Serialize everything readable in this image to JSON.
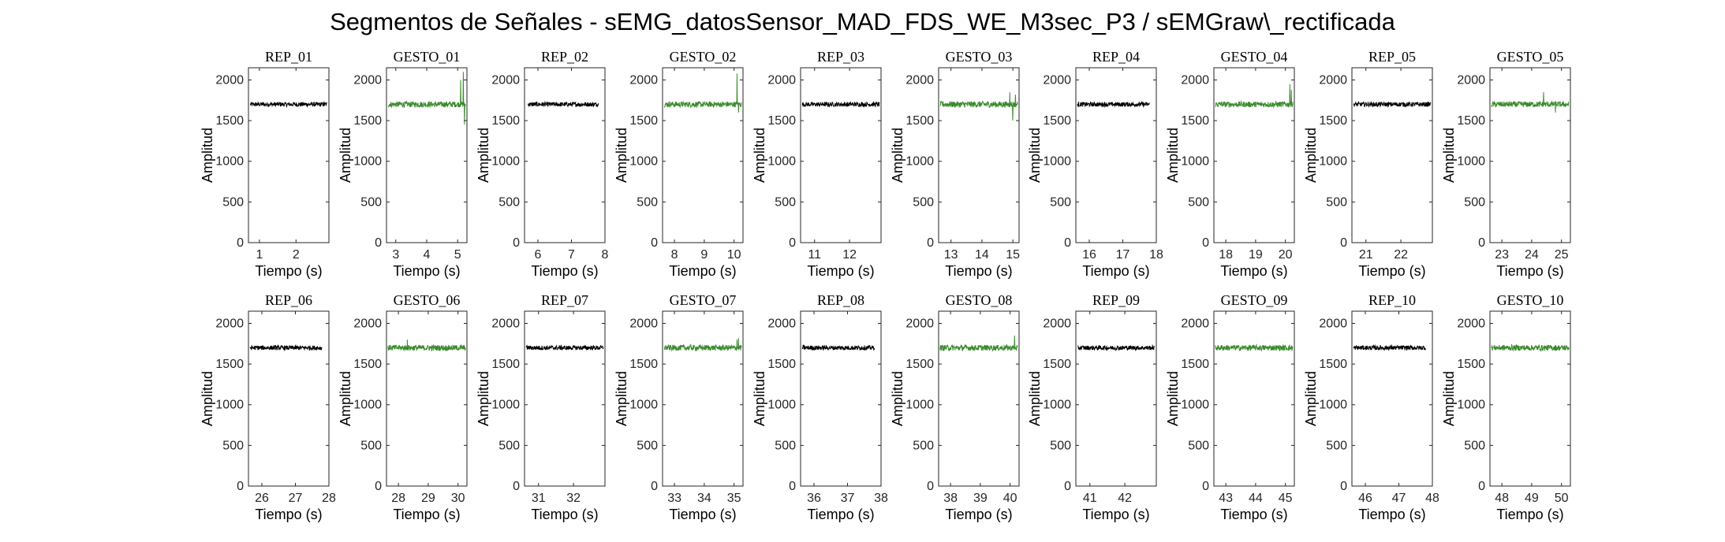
{
  "figure": {
    "title": "Segmentos de Señales - sEMG_datosSensor_MAD_FDS_WE_M3sec_P3 / sEMGraw\\_rectificada"
  },
  "colors": {
    "rep": "#000000",
    "gesto": "#3a8a2c",
    "axis": "#262626"
  },
  "chart_data": [
    {
      "type": "line",
      "title": "REP_01",
      "xlabel": "Tiempo (s)",
      "ylabel": "Amplitud",
      "xlim": [
        0.7,
        2.9
      ],
      "ylim": [
        0,
        2150
      ],
      "xticks": [
        1,
        2
      ],
      "yticks": [
        0,
        500,
        1000,
        1500,
        2000
      ],
      "series": [
        {
          "color": "#000000",
          "x_start": 0.75,
          "x_end": 2.85,
          "baseline": 1700,
          "noise": 28,
          "spikes": []
        }
      ]
    },
    {
      "type": "line",
      "title": "GESTO_01",
      "xlabel": "Tiempo (s)",
      "ylabel": "Amplitud",
      "xlim": [
        2.7,
        5.3
      ],
      "ylim": [
        0,
        2150
      ],
      "xticks": [
        3,
        4,
        5
      ],
      "yticks": [
        0,
        500,
        1000,
        1500,
        2000
      ],
      "series": [
        {
          "color": "#3a8a2c",
          "x_start": 2.75,
          "x_end": 5.25,
          "baseline": 1700,
          "noise": 35,
          "spikes": [
            [
              5.1,
              2000
            ],
            [
              5.18,
              2100
            ],
            [
              5.22,
              1450
            ]
          ]
        }
      ]
    },
    {
      "type": "line",
      "title": "REP_02",
      "xlabel": "Tiempo (s)",
      "ylabel": "Amplitud",
      "xlim": [
        5.6,
        8.0
      ],
      "ylim": [
        0,
        2150
      ],
      "xticks": [
        6,
        7,
        8
      ],
      "yticks": [
        0,
        500,
        1000,
        1500,
        2000
      ],
      "series": [
        {
          "color": "#000000",
          "x_start": 5.7,
          "x_end": 7.8,
          "baseline": 1700,
          "noise": 28,
          "spikes": []
        }
      ]
    },
    {
      "type": "line",
      "title": "GESTO_02",
      "xlabel": "Tiempo (s)",
      "ylabel": "Amplitud",
      "xlim": [
        7.6,
        10.3
      ],
      "ylim": [
        0,
        2150
      ],
      "xticks": [
        8,
        9,
        10
      ],
      "yticks": [
        0,
        500,
        1000,
        1500,
        2000
      ],
      "series": [
        {
          "color": "#3a8a2c",
          "x_start": 7.65,
          "x_end": 10.25,
          "baseline": 1700,
          "noise": 35,
          "spikes": [
            [
              10.1,
              2080
            ],
            [
              10.15,
              1600
            ]
          ]
        }
      ]
    },
    {
      "type": "line",
      "title": "REP_03",
      "xlabel": "Tiempo (s)",
      "ylabel": "Amplitud",
      "xlim": [
        10.6,
        12.9
      ],
      "ylim": [
        0,
        2150
      ],
      "xticks": [
        11,
        12
      ],
      "yticks": [
        0,
        500,
        1000,
        1500,
        2000
      ],
      "series": [
        {
          "color": "#000000",
          "x_start": 10.65,
          "x_end": 12.85,
          "baseline": 1700,
          "noise": 28,
          "spikes": []
        }
      ]
    },
    {
      "type": "line",
      "title": "GESTO_03",
      "xlabel": "Tiempo (s)",
      "ylabel": "Amplitud",
      "xlim": [
        12.6,
        15.2
      ],
      "ylim": [
        0,
        2150
      ],
      "xticks": [
        13,
        14,
        15
      ],
      "yticks": [
        0,
        500,
        1000,
        1500,
        2000
      ],
      "series": [
        {
          "color": "#3a8a2c",
          "x_start": 12.65,
          "x_end": 15.15,
          "baseline": 1700,
          "noise": 38,
          "spikes": [
            [
              14.9,
              1850
            ],
            [
              15.0,
              1500
            ],
            [
              15.08,
              1820
            ]
          ]
        }
      ]
    },
    {
      "type": "line",
      "title": "REP_04",
      "xlabel": "Tiempo (s)",
      "ylabel": "Amplitud",
      "xlim": [
        15.6,
        18.0
      ],
      "ylim": [
        0,
        2150
      ],
      "xticks": [
        16,
        17,
        18
      ],
      "yticks": [
        0,
        500,
        1000,
        1500,
        2000
      ],
      "series": [
        {
          "color": "#000000",
          "x_start": 15.65,
          "x_end": 17.8,
          "baseline": 1700,
          "noise": 28,
          "spikes": []
        }
      ]
    },
    {
      "type": "line",
      "title": "GESTO_04",
      "xlabel": "Tiempo (s)",
      "ylabel": "Amplitud",
      "xlim": [
        17.6,
        20.3
      ],
      "ylim": [
        0,
        2150
      ],
      "xticks": [
        18,
        19,
        20
      ],
      "yticks": [
        0,
        500,
        1000,
        1500,
        2000
      ],
      "series": [
        {
          "color": "#3a8a2c",
          "x_start": 17.65,
          "x_end": 20.25,
          "baseline": 1700,
          "noise": 35,
          "spikes": [
            [
              20.15,
              1950
            ],
            [
              20.2,
              1880
            ]
          ]
        }
      ]
    },
    {
      "type": "line",
      "title": "REP_05",
      "xlabel": "Tiempo (s)",
      "ylabel": "Amplitud",
      "xlim": [
        20.6,
        22.9
      ],
      "ylim": [
        0,
        2150
      ],
      "xticks": [
        21,
        22
      ],
      "yticks": [
        0,
        500,
        1000,
        1500,
        2000
      ],
      "series": [
        {
          "color": "#000000",
          "x_start": 20.65,
          "x_end": 22.85,
          "baseline": 1700,
          "noise": 28,
          "spikes": []
        }
      ]
    },
    {
      "type": "line",
      "title": "GESTO_05",
      "xlabel": "Tiempo (s)",
      "ylabel": "Amplitud",
      "xlim": [
        22.6,
        25.3
      ],
      "ylim": [
        0,
        2150
      ],
      "xticks": [
        23,
        24,
        25
      ],
      "yticks": [
        0,
        500,
        1000,
        1500,
        2000
      ],
      "series": [
        {
          "color": "#3a8a2c",
          "x_start": 22.65,
          "x_end": 25.25,
          "baseline": 1700,
          "noise": 35,
          "spikes": [
            [
              24.4,
              1850
            ],
            [
              24.8,
              1600
            ]
          ]
        }
      ]
    },
    {
      "type": "line",
      "title": "REP_06",
      "xlabel": "Tiempo (s)",
      "ylabel": "Amplitud",
      "xlim": [
        25.6,
        28.0
      ],
      "ylim": [
        0,
        2150
      ],
      "xticks": [
        26,
        27,
        28
      ],
      "yticks": [
        0,
        500,
        1000,
        1500,
        2000
      ],
      "series": [
        {
          "color": "#000000",
          "x_start": 25.65,
          "x_end": 27.8,
          "baseline": 1700,
          "noise": 28,
          "spikes": []
        }
      ]
    },
    {
      "type": "line",
      "title": "GESTO_06",
      "xlabel": "Tiempo (s)",
      "ylabel": "Amplitud",
      "xlim": [
        27.6,
        30.3
      ],
      "ylim": [
        0,
        2150
      ],
      "xticks": [
        28,
        29,
        30
      ],
      "yticks": [
        0,
        500,
        1000,
        1500,
        2000
      ],
      "series": [
        {
          "color": "#3a8a2c",
          "x_start": 27.65,
          "x_end": 30.25,
          "baseline": 1700,
          "noise": 35,
          "spikes": [
            [
              28.3,
              1800
            ]
          ]
        }
      ]
    },
    {
      "type": "line",
      "title": "REP_07",
      "xlabel": "Tiempo (s)",
      "ylabel": "Amplitud",
      "xlim": [
        30.6,
        32.9
      ],
      "ylim": [
        0,
        2150
      ],
      "xticks": [
        31,
        32
      ],
      "yticks": [
        0,
        500,
        1000,
        1500,
        2000
      ],
      "series": [
        {
          "color": "#000000",
          "x_start": 30.65,
          "x_end": 32.85,
          "baseline": 1700,
          "noise": 28,
          "spikes": []
        }
      ]
    },
    {
      "type": "line",
      "title": "GESTO_07",
      "xlabel": "Tiempo (s)",
      "ylabel": "Amplitud",
      "xlim": [
        32.6,
        35.3
      ],
      "ylim": [
        0,
        2150
      ],
      "xticks": [
        33,
        34,
        35
      ],
      "yticks": [
        0,
        500,
        1000,
        1500,
        2000
      ],
      "series": [
        {
          "color": "#3a8a2c",
          "x_start": 32.65,
          "x_end": 35.25,
          "baseline": 1700,
          "noise": 35,
          "spikes": [
            [
              35.1,
              1800
            ],
            [
              35.15,
              1820
            ]
          ]
        }
      ]
    },
    {
      "type": "line",
      "title": "REP_08",
      "xlabel": "Tiempo (s)",
      "ylabel": "Amplitud",
      "xlim": [
        35.6,
        38.0
      ],
      "ylim": [
        0,
        2150
      ],
      "xticks": [
        36,
        37,
        38
      ],
      "yticks": [
        0,
        500,
        1000,
        1500,
        2000
      ],
      "series": [
        {
          "color": "#000000",
          "x_start": 35.65,
          "x_end": 37.8,
          "baseline": 1700,
          "noise": 28,
          "spikes": []
        }
      ]
    },
    {
      "type": "line",
      "title": "GESTO_08",
      "xlabel": "Tiempo (s)",
      "ylabel": "Amplitud",
      "xlim": [
        37.6,
        40.3
      ],
      "ylim": [
        0,
        2150
      ],
      "xticks": [
        38,
        39,
        40
      ],
      "yticks": [
        0,
        500,
        1000,
        1500,
        2000
      ],
      "series": [
        {
          "color": "#3a8a2c",
          "x_start": 37.65,
          "x_end": 40.25,
          "baseline": 1700,
          "noise": 35,
          "spikes": [
            [
              40.15,
              1850
            ]
          ]
        }
      ]
    },
    {
      "type": "line",
      "title": "REP_09",
      "xlabel": "Tiempo (s)",
      "ylabel": "Amplitud",
      "xlim": [
        40.6,
        42.9
      ],
      "ylim": [
        0,
        2150
      ],
      "xticks": [
        41,
        42
      ],
      "yticks": [
        0,
        500,
        1000,
        1500,
        2000
      ],
      "series": [
        {
          "color": "#000000",
          "x_start": 40.65,
          "x_end": 42.85,
          "baseline": 1700,
          "noise": 28,
          "spikes": []
        }
      ]
    },
    {
      "type": "line",
      "title": "GESTO_09",
      "xlabel": "Tiempo (s)",
      "ylabel": "Amplitud",
      "xlim": [
        42.6,
        45.3
      ],
      "ylim": [
        0,
        2150
      ],
      "xticks": [
        43,
        44,
        45
      ],
      "yticks": [
        0,
        500,
        1000,
        1500,
        2000
      ],
      "series": [
        {
          "color": "#3a8a2c",
          "x_start": 42.65,
          "x_end": 45.25,
          "baseline": 1700,
          "noise": 35,
          "spikes": []
        }
      ]
    },
    {
      "type": "line",
      "title": "REP_10",
      "xlabel": "Tiempo (s)",
      "ylabel": "Amplitud",
      "xlim": [
        45.6,
        48.0
      ],
      "ylim": [
        0,
        2150
      ],
      "xticks": [
        46,
        47,
        48
      ],
      "yticks": [
        0,
        500,
        1000,
        1500,
        2000
      ],
      "series": [
        {
          "color": "#000000",
          "x_start": 45.65,
          "x_end": 47.8,
          "baseline": 1700,
          "noise": 28,
          "spikes": []
        }
      ]
    },
    {
      "type": "line",
      "title": "GESTO_10",
      "xlabel": "Tiempo (s)",
      "ylabel": "Amplitud",
      "xlim": [
        47.6,
        50.3
      ],
      "ylim": [
        0,
        2150
      ],
      "xticks": [
        48,
        49,
        50
      ],
      "yticks": [
        0,
        500,
        1000,
        1500,
        2000
      ],
      "series": [
        {
          "color": "#3a8a2c",
          "x_start": 47.65,
          "x_end": 50.25,
          "baseline": 1700,
          "noise": 35,
          "spikes": []
        }
      ]
    }
  ]
}
